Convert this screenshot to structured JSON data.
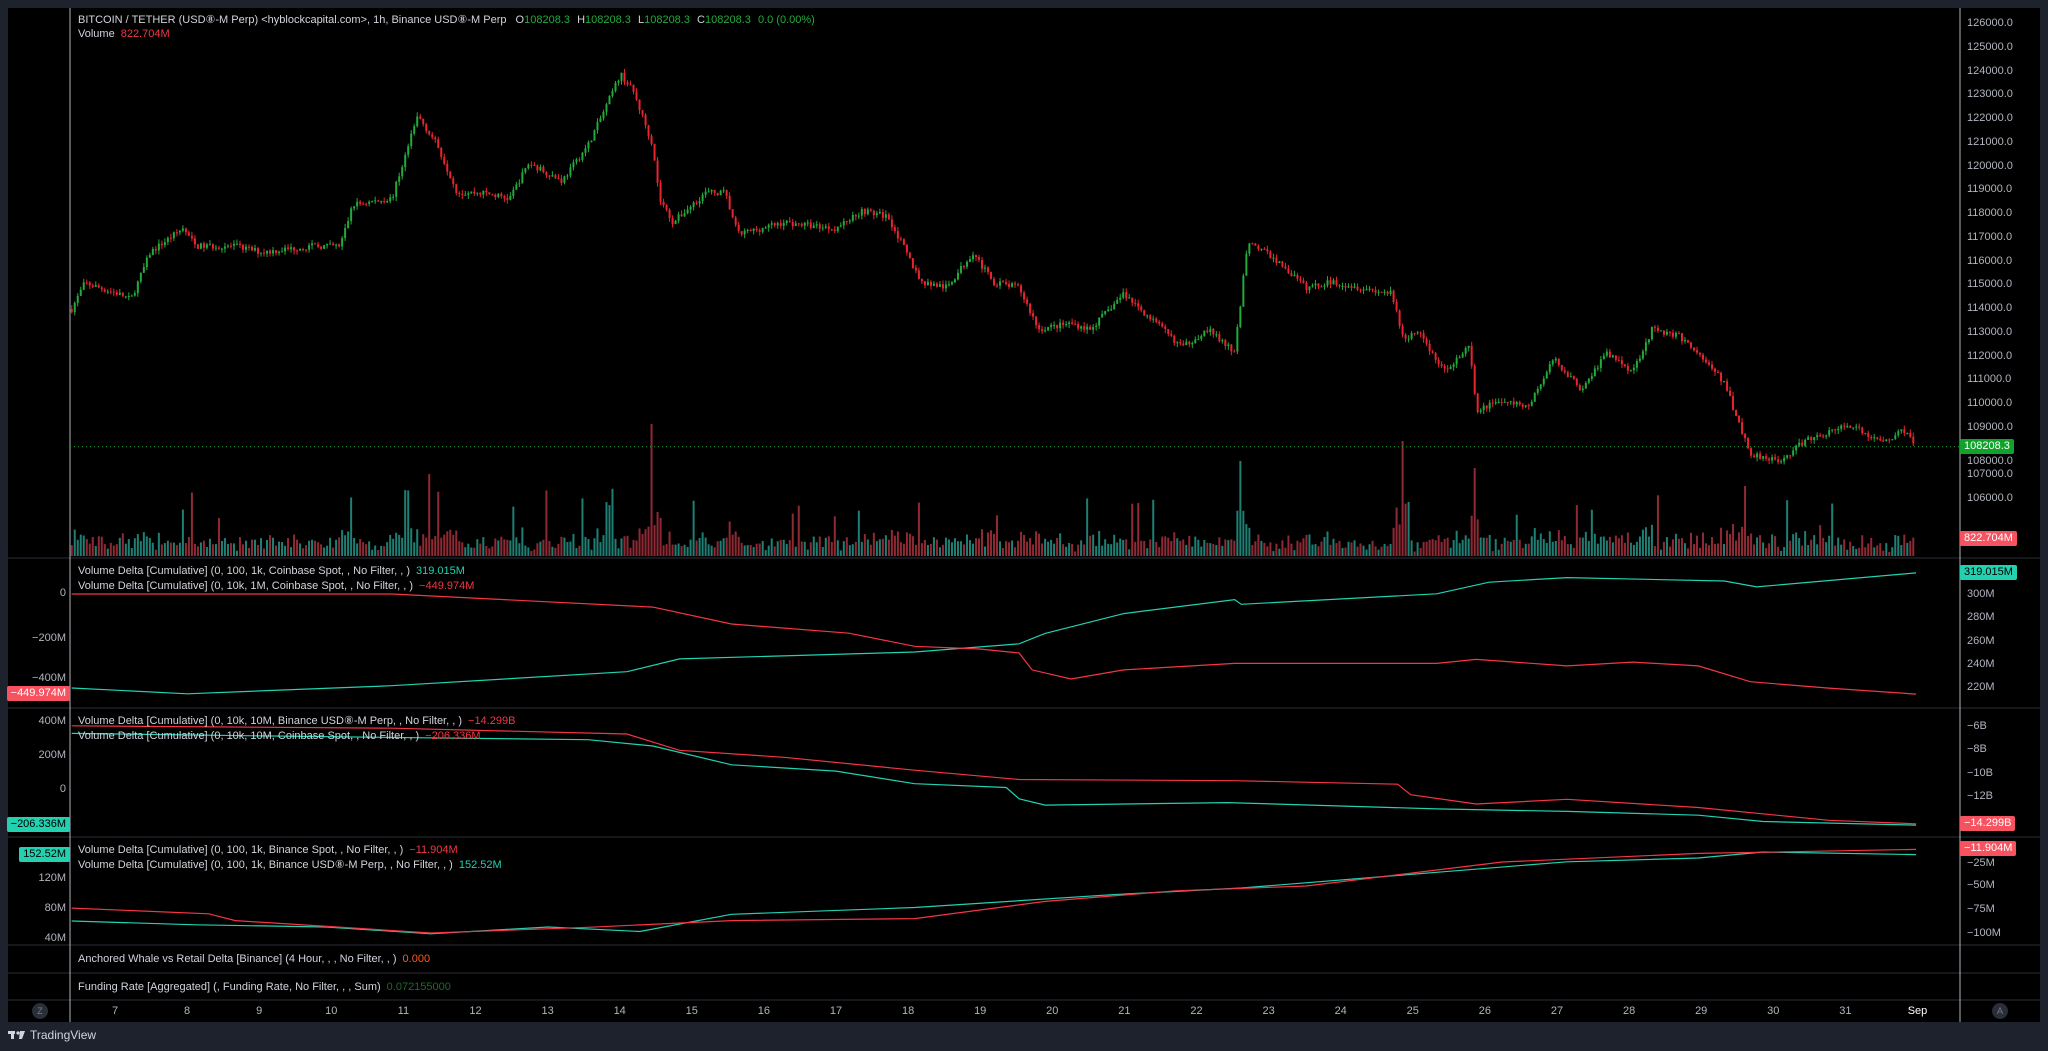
{
  "header": {
    "symbol": "BITCOIN / TETHER (USD⑧-M Perp) <hyblockcapital.com>, 1h, Binance USD⑧-M Perp",
    "o_label": "O",
    "o": "108208.3",
    "h_label": "H",
    "h": "108208.3",
    "l_label": "L",
    "l": "108208.3",
    "c_label": "C",
    "c": "108208.3",
    "change": "0.0 (0.00%)",
    "volume_label": "Volume",
    "volume": "822.704M"
  },
  "colors": {
    "up": "#22ab3c",
    "down": "#e8242f",
    "teal": "#22d1b0",
    "red": "#f23645",
    "bg": "#000000",
    "frame": "#1e222d"
  },
  "price_axis": {
    "ticks": [
      "126000.0",
      "125000.0",
      "124000.0",
      "123000.0",
      "122000.0",
      "121000.0",
      "120000.0",
      "119000.0",
      "118000.0",
      "117000.0",
      "116000.0",
      "115000.0",
      "114000.0",
      "113000.0",
      "112000.0",
      "111000.0",
      "110000.0",
      "109000.0",
      "108000.0",
      "107000.0",
      "106000.0"
    ],
    "last_price": "108208.3",
    "last_volume": "822.704M"
  },
  "price_path": [
    [
      6.4,
      114000
    ],
    [
      6.58,
      115100
    ],
    [
      7.04,
      114650
    ],
    [
      7.22,
      114400
    ],
    [
      7.49,
      116400
    ],
    [
      7.94,
      117400
    ],
    [
      8.12,
      116650
    ],
    [
      8.67,
      116650
    ],
    [
      9.03,
      116400
    ],
    [
      9.75,
      116650
    ],
    [
      10.12,
      116650
    ],
    [
      10.3,
      118400
    ],
    [
      10.84,
      118650
    ],
    [
      11.2,
      122150
    ],
    [
      11.47,
      120900
    ],
    [
      11.75,
      118900
    ],
    [
      12.11,
      118900
    ],
    [
      12.47,
      118650
    ],
    [
      12.74,
      120150
    ],
    [
      13.2,
      119400
    ],
    [
      13.56,
      120900
    ],
    [
      13.83,
      122650
    ],
    [
      14.01,
      123900
    ],
    [
      14.19,
      123150
    ],
    [
      14.46,
      120900
    ],
    [
      14.55,
      118650
    ],
    [
      14.74,
      117650
    ],
    [
      15.19,
      118900
    ],
    [
      15.46,
      118900
    ],
    [
      15.64,
      117150
    ],
    [
      16.28,
      117650
    ],
    [
      17.0,
      117400
    ],
    [
      17.36,
      118150
    ],
    [
      17.72,
      117900
    ],
    [
      18.18,
      115150
    ],
    [
      18.54,
      114900
    ],
    [
      18.9,
      116400
    ],
    [
      19.17,
      115150
    ],
    [
      19.54,
      114900
    ],
    [
      19.81,
      113150
    ],
    [
      20.26,
      113400
    ],
    [
      20.53,
      113150
    ],
    [
      20.99,
      114650
    ],
    [
      21.44,
      113400
    ],
    [
      21.8,
      112400
    ],
    [
      22.16,
      113150
    ],
    [
      22.53,
      112150
    ],
    [
      22.71,
      116900
    ],
    [
      23.07,
      116150
    ],
    [
      23.52,
      114900
    ],
    [
      23.88,
      115150
    ],
    [
      24.7,
      114650
    ],
    [
      24.88,
      112650
    ],
    [
      25.06,
      113150
    ],
    [
      25.42,
      111400
    ],
    [
      25.79,
      112400
    ],
    [
      25.88,
      109650
    ],
    [
      26.15,
      110150
    ],
    [
      26.6,
      109900
    ],
    [
      26.96,
      111900
    ],
    [
      27.33,
      110650
    ],
    [
      27.69,
      112150
    ],
    [
      28.05,
      111400
    ],
    [
      28.32,
      113150
    ],
    [
      28.68,
      112900
    ],
    [
      28.96,
      112150
    ],
    [
      29.32,
      110900
    ],
    [
      29.59,
      108650
    ],
    [
      29.68,
      107900
    ],
    [
      30.13,
      107650
    ],
    [
      30.41,
      108400
    ],
    [
      31.04,
      109150
    ],
    [
      31.49,
      108400
    ],
    [
      31.85,
      108950
    ],
    [
      31.98,
      108208.3
    ]
  ],
  "panes": [
    {
      "legends": [
        {
          "text": "Volume Delta [Cumulative] (0, 100, 1k, Coinbase Spot, , No Filter, , )",
          "value": "319.015M",
          "color": "#22d1b0"
        },
        {
          "text": "Volume Delta [Cumulative] (0, 10k, 1M, Coinbase Spot, , No Filter, , )",
          "value": "−449.974M",
          "color": "#f23645"
        }
      ],
      "left_ticks": [
        "0",
        "−200M",
        "−400M"
      ],
      "right_ticks": [
        "300M",
        "280M",
        "260M",
        "240M",
        "220M"
      ],
      "left_tag": "−449.974M",
      "right_tag": "319.015M",
      "teal_axis": "right",
      "teal": [
        [
          6.4,
          220
        ],
        [
          8.0,
          215
        ],
        [
          10.84,
          222
        ],
        [
          14.1,
          234
        ],
        [
          14.83,
          245
        ],
        [
          18.09,
          251
        ],
        [
          19.54,
          258
        ],
        [
          19.9,
          267
        ],
        [
          20.99,
          284
        ],
        [
          22.53,
          296
        ],
        [
          22.62,
          292
        ],
        [
          25.33,
          301
        ],
        [
          26.06,
          311
        ],
        [
          27.14,
          315
        ],
        [
          29.32,
          312
        ],
        [
          29.77,
          307
        ],
        [
          31.98,
          319.015
        ]
      ],
      "red_axis": "left",
      "red": [
        [
          6.4,
          0
        ],
        [
          10.84,
          0
        ],
        [
          14.46,
          -59
        ],
        [
          15.55,
          -135
        ],
        [
          17.18,
          -176
        ],
        [
          18.09,
          -235
        ],
        [
          18.99,
          -247
        ],
        [
          19.54,
          -265
        ],
        [
          19.72,
          -341
        ],
        [
          20.26,
          -382
        ],
        [
          20.99,
          -341
        ],
        [
          22.53,
          -312
        ],
        [
          25.33,
          -312
        ],
        [
          25.88,
          -294
        ],
        [
          27.14,
          -323
        ],
        [
          28.05,
          -306
        ],
        [
          28.96,
          -323
        ],
        [
          29.68,
          -394
        ],
        [
          30.77,
          -423
        ],
        [
          31.98,
          -449.974
        ]
      ]
    },
    {
      "legends": [
        {
          "text": "Volume Delta [Cumulative] (0, 10k, 10M, Binance USD⑧-M Perp, , No Filter, , )",
          "value": "−14.299B",
          "color": "#f23645"
        },
        {
          "text": "Volume Delta [Cumulative] (0, 10k, 10M, Coinbase Spot, , No Filter, , )",
          "value": "−206.336M",
          "color": "#f23645"
        }
      ],
      "left_ticks": [
        "400M",
        "200M",
        "0"
      ],
      "right_ticks": [
        "−6B",
        "−8B",
        "−10B",
        "−12B"
      ],
      "left_tag": "−206.336M",
      "right_tag": "−14.299B",
      "teal_axis": "left",
      "teal": [
        [
          6.4,
          333
        ],
        [
          9.03,
          318
        ],
        [
          13.56,
          296
        ],
        [
          14.46,
          259
        ],
        [
          15.55,
          148
        ],
        [
          17.0,
          111
        ],
        [
          18.09,
          37
        ],
        [
          19.36,
          15
        ],
        [
          19.54,
          -52
        ],
        [
          19.9,
          -89
        ],
        [
          22.43,
          -74
        ],
        [
          25.33,
          -111
        ],
        [
          27.14,
          -126
        ],
        [
          28.96,
          -148
        ],
        [
          29.86,
          -185
        ],
        [
          31.98,
          -206.336
        ]
      ],
      "red_axis": "right",
      "red": [
        [
          6.4,
          -5.9
        ],
        [
          10.84,
          -6.1
        ],
        [
          14.1,
          -6.6
        ],
        [
          14.83,
          -8.0
        ],
        [
          16.28,
          -8.6
        ],
        [
          18.09,
          -9.7
        ],
        [
          19.54,
          -10.5
        ],
        [
          22.53,
          -10.6
        ],
        [
          24.79,
          -10.9
        ],
        [
          24.97,
          -11.8
        ],
        [
          25.88,
          -12.6
        ],
        [
          27.14,
          -12.2
        ],
        [
          28.96,
          -12.9
        ],
        [
          30.77,
          -14.0
        ],
        [
          31.98,
          -14.299
        ]
      ]
    },
    {
      "legends": [
        {
          "text": "Volume Delta [Cumulative] (0, 100, 1k, Binance Spot, , No Filter, , )",
          "value": "−11.904M",
          "color": "#f23645"
        },
        {
          "text": "Volume Delta [Cumulative] (0, 100, 1k, Binance USD⑧-M Perp, , No Filter, , )",
          "value": "152.52M",
          "color": "#22d1b0"
        }
      ],
      "left_ticks": [
        "120M",
        "80M",
        "40M"
      ],
      "right_ticks": [
        "−25M",
        "−50M",
        "−75M",
        "−100M"
      ],
      "left_tag": "152.52M",
      "right_tag": "−11.904M",
      "teal_axis": "left",
      "teal": [
        [
          6.4,
          64
        ],
        [
          8.12,
          59
        ],
        [
          9.93,
          56
        ],
        [
          11.38,
          47
        ],
        [
          13.01,
          56
        ],
        [
          14.28,
          50
        ],
        [
          15.55,
          73
        ],
        [
          18.09,
          82
        ],
        [
          20.8,
          99
        ],
        [
          22.62,
          108
        ],
        [
          25.33,
          129
        ],
        [
          27.14,
          143
        ],
        [
          28.96,
          148
        ],
        [
          29.86,
          156
        ],
        [
          31.98,
          152.52
        ]
      ],
      "red_axis": "right",
      "red": [
        [
          6.4,
          -73
        ],
        [
          8.3,
          -79
        ],
        [
          8.67,
          -86
        ],
        [
          11.38,
          -99
        ],
        [
          13.56,
          -93
        ],
        [
          15.55,
          -86
        ],
        [
          18.09,
          -84
        ],
        [
          19.9,
          -66
        ],
        [
          21.71,
          -55
        ],
        [
          23.52,
          -50
        ],
        [
          26.24,
          -25
        ],
        [
          28.96,
          -16
        ],
        [
          31.98,
          -11.904
        ]
      ]
    }
  ],
  "whale": {
    "text": "Anchored Whale vs Retail Delta [Binance] (4 Hour, , , No Filter, , )",
    "value": "0.000"
  },
  "funding": {
    "text": "Funding Rate [Aggregated] (, Funding Rate, No Filter, , , Sum)",
    "value": "0.072155000"
  },
  "time_axis": {
    "labels": [
      "7",
      "8",
      "9",
      "10",
      "11",
      "12",
      "13",
      "14",
      "15",
      "16",
      "17",
      "18",
      "19",
      "20",
      "21",
      "22",
      "23",
      "24",
      "25",
      "26",
      "27",
      "28",
      "29",
      "30",
      "31",
      "Sep"
    ],
    "left_button": "Z",
    "right_button": "A"
  },
  "footer": {
    "brand": "TradingView"
  }
}
